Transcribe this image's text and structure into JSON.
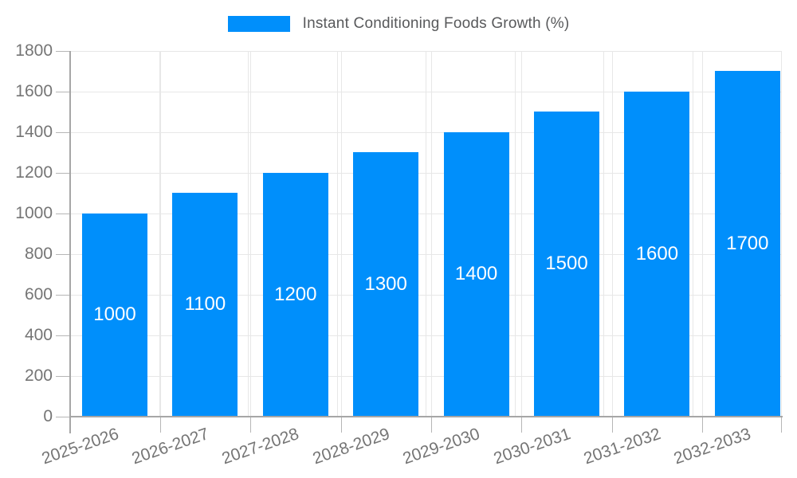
{
  "chart_data": {
    "type": "bar",
    "title": "",
    "series_name": "Instant Conditioning Foods Growth (%)",
    "categories": [
      "2025-2026",
      "2026-2027",
      "2027-2028",
      "2028-2029",
      "2029-2030",
      "2030-2031",
      "2031-2032",
      "2032-2033"
    ],
    "values": [
      1000,
      1100,
      1200,
      1300,
      1400,
      1500,
      1600,
      1700
    ],
    "bar_value_labels": [
      "1000",
      "1100",
      "1200",
      "1300",
      "1400",
      "1500",
      "1600",
      "1700"
    ],
    "ylim": [
      0,
      1800
    ],
    "ytick_step": 200,
    "yticks": [
      0,
      200,
      400,
      600,
      800,
      1000,
      1200,
      1400,
      1600,
      1800
    ],
    "grid": true,
    "legend_position": "top",
    "xlabel": "",
    "ylabel": "",
    "colors": {
      "bar": "#008FFB",
      "bar_label": "#ffffff",
      "grid": "#e7e7e7",
      "axis": "#a6a6a6",
      "tick": "#b6b6b6",
      "tick_label": "#757575",
      "legend_text": "#58595b",
      "background": "#ffffff"
    }
  }
}
